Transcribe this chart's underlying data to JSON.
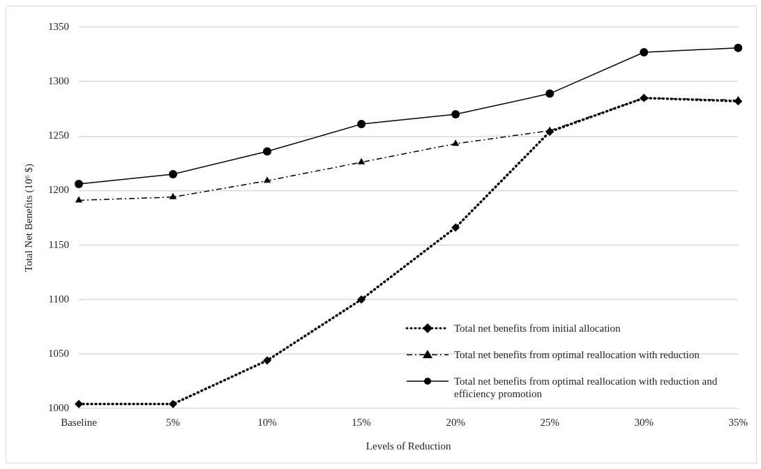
{
  "chart_data": {
    "type": "line",
    "xlabel": "Levels of Reduction",
    "ylabel": "Total Net Benefits (10⁶ $)",
    "categories": [
      "Baseline",
      "5%",
      "10%",
      "15%",
      "20%",
      "25%",
      "30%",
      "35%"
    ],
    "series": [
      {
        "name": "Total net benefits from initial allocation",
        "color": "#000000",
        "marker": "diamond",
        "line_style": "dotted",
        "values": [
          1004,
          1004,
          1044,
          1100,
          1166,
          1254,
          1285,
          1282
        ]
      },
      {
        "name": "Total net benefits from optimal reallocation with reduction",
        "color": "#000000",
        "marker": "triangle",
        "line_style": "dashed",
        "values": [
          1191,
          1194,
          1209,
          1226,
          1243,
          1255,
          1285,
          1283
        ]
      },
      {
        "name": "Total net benefits from optimal reallocation with reduction and efficiency promotion",
        "color": "#000000",
        "marker": "circle",
        "line_style": "solid",
        "values": [
          1206,
          1215,
          1236,
          1261,
          1270,
          1289,
          1327,
          1331
        ]
      }
    ],
    "ylim": [
      1000,
      1350
    ],
    "yticks": [
      1000,
      1050,
      1100,
      1150,
      1200,
      1250,
      1300,
      1350
    ],
    "grid": "y",
    "legend": "bottom right"
  }
}
